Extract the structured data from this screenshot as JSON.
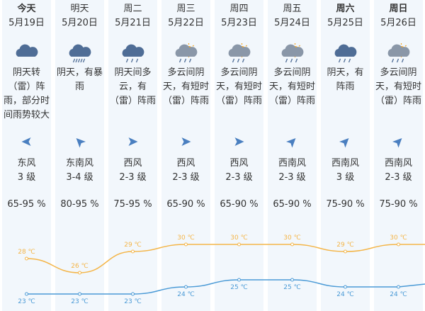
{
  "days": [
    {
      "day": "今天",
      "date": "5月19日",
      "weather": [
        "阴天转",
        "（雷）阵",
        "雨，部分时",
        "间雨势较大"
      ],
      "wind_direction": "东风",
      "wind_level": "3 级",
      "humidity": "65-95 %"
    },
    {
      "day": "明天",
      "date": "5月20日",
      "weather": [
        "阴天，有暴",
        "雨"
      ],
      "wind_direction": "东南风",
      "wind_level": "3-4 级",
      "humidity": "80-95 %"
    },
    {
      "day": "周二",
      "date": "5月21日",
      "weather": [
        "阴天间多",
        "云，有",
        "（雷）阵雨"
      ],
      "wind_direction": "西风",
      "wind_level": "2-3 级",
      "humidity": "75-95 %"
    },
    {
      "day": "周三",
      "date": "5月22日",
      "weather": [
        "多云间阴",
        "天，有短时",
        "（雷）阵雨"
      ],
      "wind_direction": "西风",
      "wind_level": "2-3 级",
      "humidity": "65-90 %"
    },
    {
      "day": "周四",
      "date": "5月23日",
      "weather": [
        "多云间阴",
        "天，有短时",
        "（雷）阵雨"
      ],
      "wind_direction": "西风",
      "wind_level": "2-3 级",
      "humidity": "65-90 %"
    },
    {
      "day": "周五",
      "date": "5月24日",
      "weather": [
        "多云间阴",
        "天，有短时",
        "（雷）阵雨"
      ],
      "wind_direction": "西南风",
      "wind_level": "2-3 级",
      "humidity": "65-90 %"
    },
    {
      "day": "周六",
      "date": "5月25日",
      "weather": [
        "阴天，有",
        "阵雨"
      ],
      "wind_direction": "西南风",
      "wind_level": "3 级",
      "humidity": "75-90 %"
    },
    {
      "day": "周日",
      "date": "5月26日",
      "weather": [
        "多云间阴",
        "天，有短时",
        "（雷）阵雨"
      ],
      "wind_direction": "西南风",
      "wind_level": "2-3 级",
      "humidity": "75-90 %"
    }
  ],
  "chart_data": {
    "type": "line",
    "series": [
      {
        "color": "#f4b548",
        "values": [
          28,
          26,
          29,
          30,
          30,
          30,
          29,
          30
        ],
        "value_labels": [
          "28 ℃",
          "26 ℃",
          "29 ℃",
          "30 ℃",
          "30 ℃",
          "30 ℃",
          "29 ℃",
          "30 ℃"
        ]
      },
      {
        "color": "#4a9ad6",
        "values": [
          23,
          23,
          23,
          24,
          25,
          25,
          24,
          24
        ],
        "value_labels": [
          "23 ℃",
          "23 ℃",
          "23 ℃",
          "24 ℃",
          "25 ℃",
          "25 ℃",
          "24 ℃",
          "24 ℃"
        ]
      }
    ]
  }
}
